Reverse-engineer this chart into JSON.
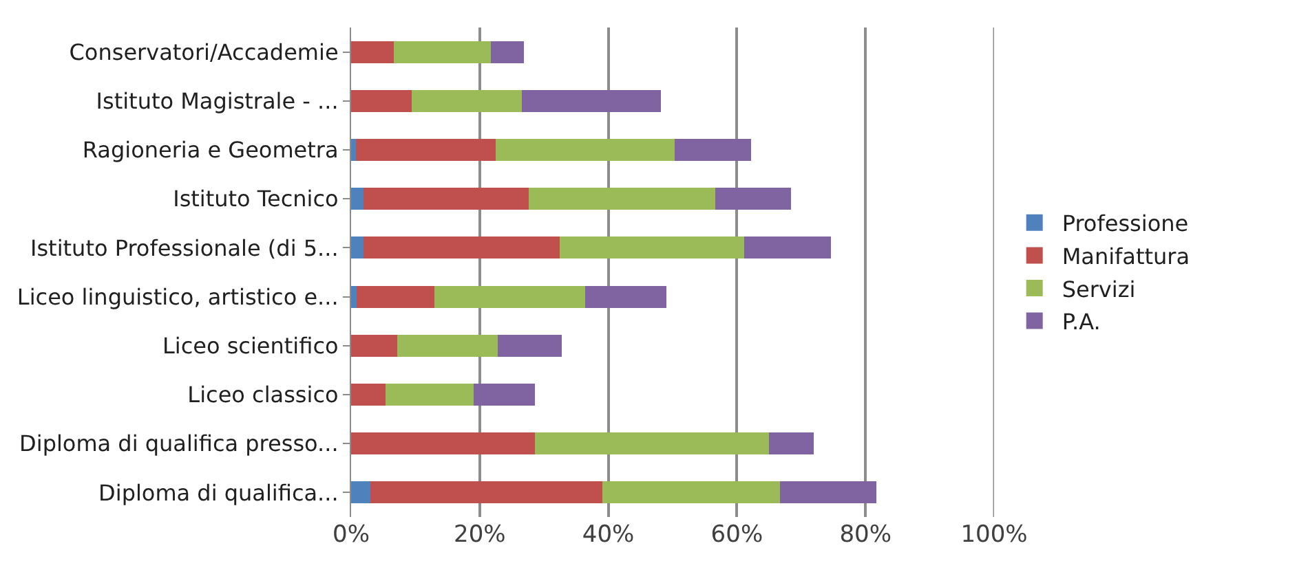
{
  "chart_data": {
    "type": "bar",
    "orientation": "horizontal",
    "stacked": true,
    "categories": [
      "Conservatori/Accademie",
      "Istituto Magistrale - ...",
      "Ragioneria e Geometra",
      "Istituto Tecnico",
      "Istituto Professionale (di 5...",
      "Liceo linguistico, artistico e...",
      "Liceo scientifico",
      "Liceo classico",
      "Diploma di qualifica presso...",
      "Diploma di qualifica..."
    ],
    "series": [
      {
        "name": "Professione",
        "color": "#4f81bd",
        "values": [
          0,
          0,
          0.8,
          1.9,
          1.9,
          0.9,
          0,
          0,
          0,
          3.0
        ]
      },
      {
        "name": "Manifattura",
        "color": "#c0504d",
        "values": [
          6.6,
          9.4,
          21.7,
          25.7,
          30.5,
          12.1,
          7.2,
          5.4,
          28.6,
          36.1
        ]
      },
      {
        "name": "Servizi",
        "color": "#9bbb59",
        "values": [
          15.1,
          17.2,
          27.8,
          29.0,
          28.7,
          23.4,
          15.6,
          13.7,
          36.4,
          27.6
        ]
      },
      {
        "name": "P.A.",
        "color": "#8064a2",
        "values": [
          5.2,
          21.6,
          11.9,
          11.8,
          13.5,
          12.6,
          10.0,
          9.5,
          6.9,
          15.0
        ]
      }
    ],
    "xlim": [
      0,
      100
    ],
    "xticks": [
      {
        "value": 0,
        "label": "0%"
      },
      {
        "value": 20,
        "label": "20%"
      },
      {
        "value": 40,
        "label": "40%"
      },
      {
        "value": 60,
        "label": "60%"
      },
      {
        "value": 80,
        "label": "80%"
      },
      {
        "value": 100,
        "label": "100%"
      }
    ],
    "grid": "x",
    "legend": "right"
  }
}
